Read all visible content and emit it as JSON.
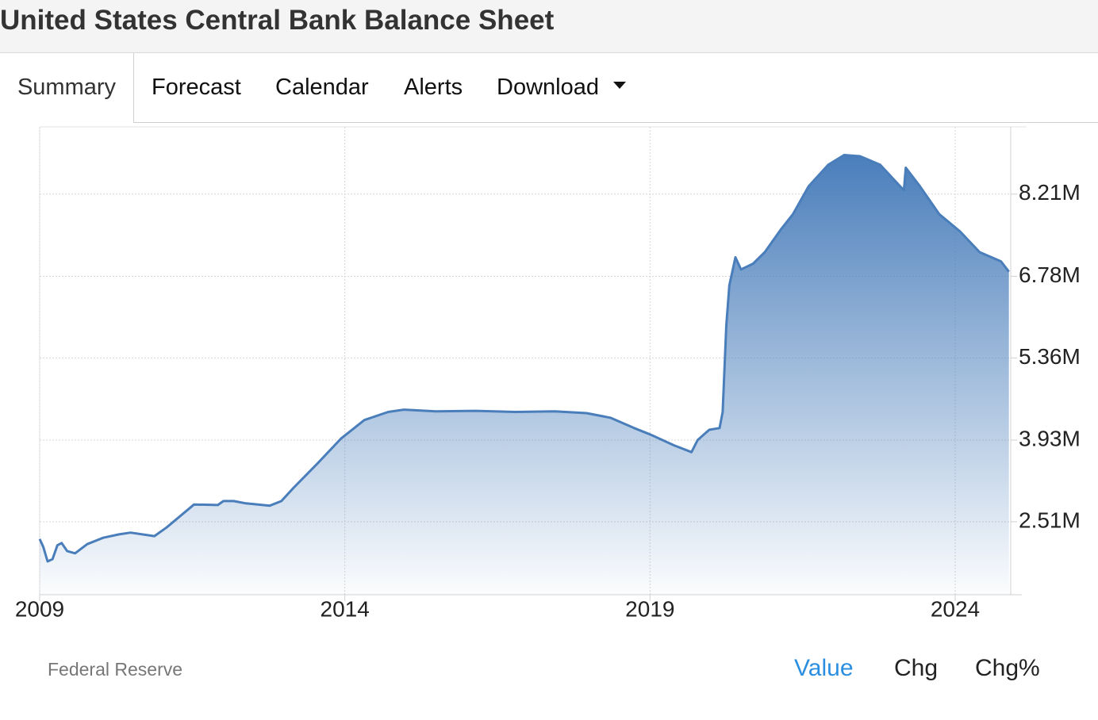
{
  "header": {
    "title": "United States Central Bank Balance Sheet"
  },
  "tabs": [
    "Summary",
    "Forecast",
    "Calendar",
    "Alerts",
    "Download"
  ],
  "chart_data": {
    "type": "area",
    "color": "#4a7ebb",
    "grid": true,
    "x": [
      2009.0,
      2009.06,
      2009.13,
      2009.21,
      2009.29,
      2009.36,
      2009.45,
      2009.58,
      2009.78,
      2010.04,
      2010.3,
      2010.49,
      2010.88,
      2011.08,
      2011.53,
      2011.92,
      2012.01,
      2012.18,
      2012.38,
      2012.77,
      2012.96,
      2013.16,
      2013.55,
      2013.94,
      2014.32,
      2014.71,
      2014.97,
      2015.49,
      2016.14,
      2016.79,
      2017.44,
      2017.96,
      2018.35,
      2018.74,
      2019.0,
      2019.39,
      2019.68,
      2019.78,
      2019.97,
      2020.14,
      2020.19,
      2020.25,
      2020.3,
      2020.4,
      2020.49,
      2020.69,
      2020.88,
      2021.14,
      2021.34,
      2021.6,
      2021.92,
      2022.18,
      2022.44,
      2022.77,
      2023.12,
      2023.16,
      2023.19,
      2023.42,
      2023.74,
      2024.08,
      2024.4,
      2024.75,
      2024.88
    ],
    "values": [
      2.21,
      2.07,
      1.82,
      1.86,
      2.1,
      2.14,
      2.0,
      1.96,
      2.12,
      2.23,
      2.29,
      2.32,
      2.26,
      2.41,
      2.81,
      2.8,
      2.87,
      2.87,
      2.83,
      2.79,
      2.87,
      3.1,
      3.52,
      3.96,
      4.28,
      4.42,
      4.46,
      4.43,
      4.44,
      4.42,
      4.43,
      4.4,
      4.32,
      4.14,
      4.03,
      3.84,
      3.72,
      3.93,
      4.11,
      4.14,
      4.42,
      5.93,
      6.62,
      7.11,
      6.9,
      7.0,
      7.2,
      7.59,
      7.86,
      8.35,
      8.72,
      8.89,
      8.87,
      8.72,
      8.32,
      8.28,
      8.67,
      8.35,
      7.86,
      7.56,
      7.2,
      7.04,
      6.86
    ],
    "xlim": [
      2009,
      2024.91
    ],
    "xticks": [
      2009,
      2014,
      2019,
      2024
    ],
    "ylim": [
      1.24,
      9.38
    ],
    "yticks": [
      {
        "value": 2.51,
        "label": "2.51M"
      },
      {
        "value": 3.93,
        "label": "3.93M"
      },
      {
        "value": 5.36,
        "label": "5.36M"
      },
      {
        "value": 6.78,
        "label": "6.78M"
      },
      {
        "value": 8.21,
        "label": "8.21M"
      }
    ]
  },
  "footer": {
    "source": "Federal Reserve",
    "views": [
      "Value",
      "Chg",
      "Chg%"
    ]
  }
}
